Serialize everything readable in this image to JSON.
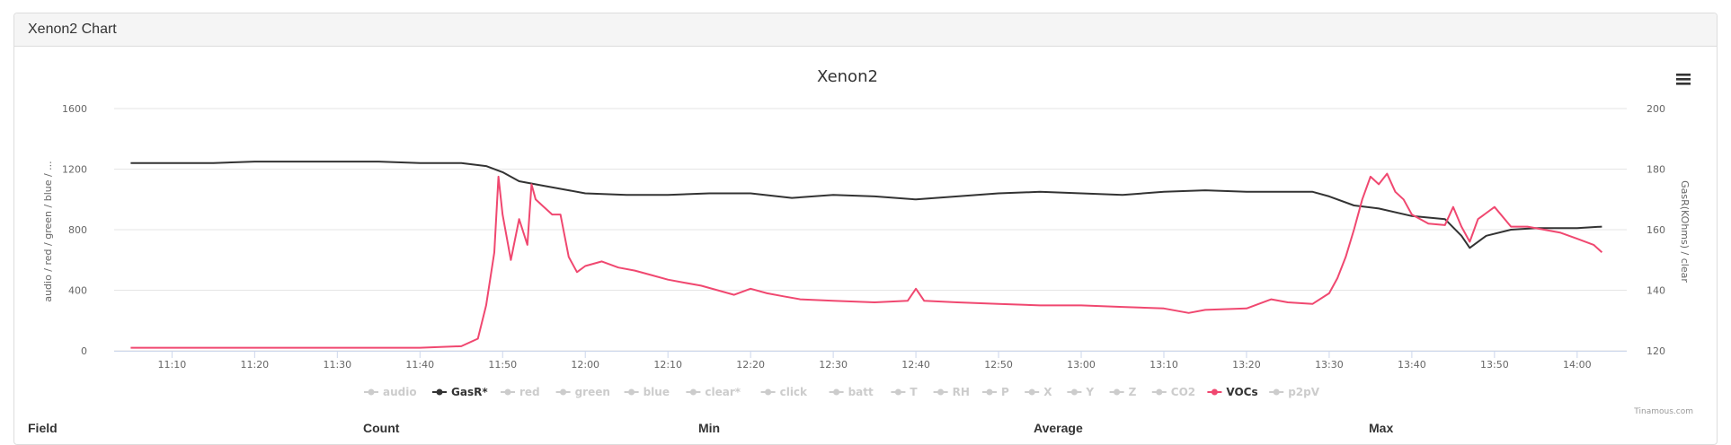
{
  "panel": {
    "title": "Xenon2 Chart"
  },
  "chart_data": {
    "type": "line",
    "title": "Xenon2",
    "y_left": {
      "label": "audio / red / green / blue / ...",
      "range": [
        0,
        1600
      ],
      "ticks": [
        "0",
        "400",
        "800",
        "1200",
        "1600"
      ]
    },
    "y_right": {
      "label": "GasR(KOhms) / clear",
      "range": [
        120,
        200
      ],
      "ticks": [
        "120",
        "140",
        "160",
        "180",
        "200"
      ]
    },
    "x_axis": {
      "range": [
        "11:03",
        "14:06"
      ],
      "ticks": [
        "11:10",
        "11:20",
        "11:30",
        "11:40",
        "11:50",
        "12:00",
        "12:10",
        "12:20",
        "12:30",
        "12:40",
        "12:50",
        "13:00",
        "13:10",
        "13:20",
        "13:30",
        "13:40",
        "13:50",
        "14:00"
      ]
    },
    "grid": true,
    "legend_position": "bottom",
    "legend": [
      {
        "name": "audio",
        "visible": false
      },
      {
        "name": "GasR*",
        "visible": true
      },
      {
        "name": "red",
        "visible": false
      },
      {
        "name": "green",
        "visible": false
      },
      {
        "name": "blue",
        "visible": false
      },
      {
        "name": "clear*",
        "visible": false
      },
      {
        "name": "click",
        "visible": false
      },
      {
        "name": "batt",
        "visible": false
      },
      {
        "name": "T",
        "visible": false
      },
      {
        "name": "RH",
        "visible": false
      },
      {
        "name": "P",
        "visible": false
      },
      {
        "name": "X",
        "visible": false
      },
      {
        "name": "Y",
        "visible": false
      },
      {
        "name": "Z",
        "visible": false
      },
      {
        "name": "CO2",
        "visible": false
      },
      {
        "name": "VOCs",
        "visible": true
      },
      {
        "name": "p2pV",
        "visible": false
      }
    ],
    "series": [
      {
        "name": "GasR*",
        "axis": "right",
        "color": "#333333",
        "points": [
          [
            "11:05",
            182
          ],
          [
            "11:10",
            182
          ],
          [
            "11:15",
            182
          ],
          [
            "11:20",
            182.5
          ],
          [
            "11:25",
            182.5
          ],
          [
            "11:30",
            182.5
          ],
          [
            "11:35",
            182.5
          ],
          [
            "11:40",
            182
          ],
          [
            "11:45",
            182
          ],
          [
            "11:48",
            181
          ],
          [
            "11:50",
            179
          ],
          [
            "11:52",
            176
          ],
          [
            "11:55",
            174.5
          ],
          [
            "11:58",
            173
          ],
          [
            "12:00",
            172
          ],
          [
            "12:05",
            171.5
          ],
          [
            "12:10",
            171.5
          ],
          [
            "12:15",
            172
          ],
          [
            "12:20",
            172
          ],
          [
            "12:25",
            170.5
          ],
          [
            "12:30",
            171.5
          ],
          [
            "12:35",
            171
          ],
          [
            "12:40",
            170
          ],
          [
            "12:45",
            171
          ],
          [
            "12:50",
            172
          ],
          [
            "12:55",
            172.5
          ],
          [
            "13:00",
            172
          ],
          [
            "13:05",
            171.5
          ],
          [
            "13:10",
            172.5
          ],
          [
            "13:15",
            173
          ],
          [
            "13:20",
            172.5
          ],
          [
            "13:25",
            172.5
          ],
          [
            "13:28",
            172.5
          ],
          [
            "13:30",
            171
          ],
          [
            "13:33",
            168
          ],
          [
            "13:36",
            167
          ],
          [
            "13:40",
            164.5
          ],
          [
            "13:44",
            163.5
          ],
          [
            "13:46",
            158
          ],
          [
            "13:47",
            154
          ],
          [
            "13:49",
            158
          ],
          [
            "13:52",
            160
          ],
          [
            "13:55",
            160.5
          ],
          [
            "13:58",
            160.5
          ],
          [
            "14:00",
            160.5
          ],
          [
            "14:03",
            161
          ]
        ]
      },
      {
        "name": "VOCs",
        "axis": "left",
        "color": "#f04870",
        "points": [
          [
            "11:05",
            20
          ],
          [
            "11:10",
            20
          ],
          [
            "11:20",
            20
          ],
          [
            "11:30",
            20
          ],
          [
            "11:40",
            20
          ],
          [
            "11:45",
            30
          ],
          [
            "11:47",
            80
          ],
          [
            "11:48",
            300
          ],
          [
            "11:49",
            650
          ],
          [
            "11:49.5",
            1150
          ],
          [
            "11:50",
            900
          ],
          [
            "11:51",
            600
          ],
          [
            "11:52",
            870
          ],
          [
            "11:53",
            700
          ],
          [
            "11:53.5",
            1100
          ],
          [
            "11:54",
            1000
          ],
          [
            "11:55",
            950
          ],
          [
            "11:56",
            900
          ],
          [
            "11:57",
            900
          ],
          [
            "11:58",
            620
          ],
          [
            "11:59",
            520
          ],
          [
            "12:00",
            560
          ],
          [
            "12:02",
            590
          ],
          [
            "12:04",
            550
          ],
          [
            "12:06",
            530
          ],
          [
            "12:08",
            500
          ],
          [
            "12:10",
            470
          ],
          [
            "12:12",
            450
          ],
          [
            "12:14",
            430
          ],
          [
            "12:16",
            400
          ],
          [
            "12:18",
            370
          ],
          [
            "12:20",
            410
          ],
          [
            "12:22",
            380
          ],
          [
            "12:24",
            360
          ],
          [
            "12:26",
            340
          ],
          [
            "12:30",
            330
          ],
          [
            "12:35",
            320
          ],
          [
            "12:39",
            330
          ],
          [
            "12:40",
            410
          ],
          [
            "12:41",
            330
          ],
          [
            "12:45",
            320
          ],
          [
            "12:50",
            310
          ],
          [
            "12:55",
            300
          ],
          [
            "13:00",
            300
          ],
          [
            "13:05",
            290
          ],
          [
            "13:10",
            280
          ],
          [
            "13:13",
            250
          ],
          [
            "13:15",
            270
          ],
          [
            "13:20",
            280
          ],
          [
            "13:23",
            340
          ],
          [
            "13:25",
            320
          ],
          [
            "13:28",
            310
          ],
          [
            "13:30",
            380
          ],
          [
            "13:31",
            480
          ],
          [
            "13:32",
            620
          ],
          [
            "13:33",
            800
          ],
          [
            "13:34",
            1000
          ],
          [
            "13:35",
            1150
          ],
          [
            "13:36",
            1100
          ],
          [
            "13:37",
            1170
          ],
          [
            "13:38",
            1050
          ],
          [
            "13:39",
            1000
          ],
          [
            "13:40",
            900
          ],
          [
            "13:42",
            840
          ],
          [
            "13:44",
            830
          ],
          [
            "13:45",
            950
          ],
          [
            "13:46",
            820
          ],
          [
            "13:47",
            720
          ],
          [
            "13:48",
            870
          ],
          [
            "13:50",
            950
          ],
          [
            "13:52",
            820
          ],
          [
            "13:54",
            820
          ],
          [
            "13:56",
            800
          ],
          [
            "13:58",
            780
          ],
          [
            "14:00",
            740
          ],
          [
            "14:02",
            700
          ],
          [
            "14:03",
            650
          ]
        ]
      }
    ],
    "credits": "Tinamous.com"
  },
  "table": {
    "headers": [
      "Field",
      "Count",
      "Min",
      "Average",
      "Max"
    ]
  },
  "icons": {
    "menu": "hamburger-menu-icon"
  }
}
